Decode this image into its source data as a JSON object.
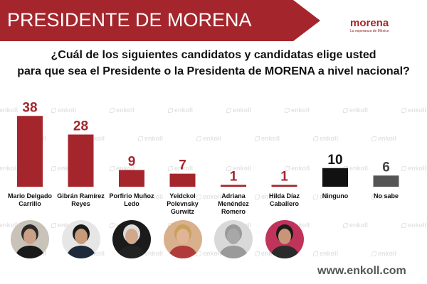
{
  "header": {
    "title": "PRESIDENTE DE MORENA",
    "band_color": "#a4262c"
  },
  "logo": {
    "word": "morena",
    "tagline": "La esperanza de México"
  },
  "question": {
    "line1": "¿Cuál de los siguientes candidatos y candidatas elige usted",
    "line2": "para que sea el Presidente o la Presidenta de MORENA a nivel nacional?"
  },
  "watermark_text": "enkoll",
  "footer": {
    "url": "www.enkoll.com"
  },
  "chart_data": {
    "type": "bar",
    "categories": [
      "Mario Delgado Carrillo",
      "Gibrán Ramírez Reyes",
      "Porfirio Muñoz Ledo",
      "Yeidckol Polevnsky Gurwitz",
      "Adriana Menéndez Romero",
      "Hilda Díaz Caballero",
      "Ninguno",
      "No sabe"
    ],
    "label_lines": [
      [
        "Mario Delgado",
        "Carrillo"
      ],
      [
        "Gibrán Ramírez",
        "Reyes"
      ],
      [
        "Porfirio Muñoz",
        "Ledo"
      ],
      [
        "Yeidckol",
        "Polevnsky",
        "Gurwitz"
      ],
      [
        "Adriana",
        "Menéndez",
        "Romero"
      ],
      [
        "Hilda Díaz",
        "Caballero"
      ],
      [
        "Ninguno"
      ],
      [
        "No sabe"
      ]
    ],
    "values": [
      38,
      28,
      9,
      7,
      1,
      1,
      10,
      6
    ],
    "bar_colors": [
      "#a4262c",
      "#a4262c",
      "#a4262c",
      "#a4262c",
      "#a4262c",
      "#a4262c",
      "#111111",
      "#555555"
    ],
    "label_colors": [
      "#a4262c",
      "#a4262c",
      "#a4262c",
      "#a4262c",
      "#a4262c",
      "#a4262c",
      "#111111",
      "#444444"
    ],
    "title": "",
    "xlabel": "",
    "ylabel": "",
    "ylim": [
      0,
      40
    ],
    "grid": false,
    "legend": "none",
    "avatars": [
      {
        "icon": "man-suit-avatar-icon",
        "bg": "#c9c2b8",
        "suit": "#1a1a1a",
        "skin": "#caa184",
        "hair": "#2a2a2a"
      },
      {
        "icon": "man-glasses-avatar-icon",
        "bg": "#e6e6e6",
        "suit": "#1e2a3a",
        "skin": "#c79a7a",
        "hair": "#1a1a1a"
      },
      {
        "icon": "elder-man-avatar-icon",
        "bg": "#1b1b1b",
        "suit": "#222222",
        "skin": "#d2a88c",
        "hair": "#dddddd"
      },
      {
        "icon": "woman-blonde-avatar-icon",
        "bg": "#d8b08c",
        "suit": "#b13b3b",
        "skin": "#e0b596",
        "hair": "#c9a15a"
      },
      {
        "icon": "woman-silhouette-avatar-icon",
        "bg": "#d9d9d9",
        "suit": "#9a9a9a",
        "skin": "#a8a8a8",
        "hair": "#9a9a9a"
      },
      {
        "icon": "woman-curly-avatar-icon",
        "bg": "#c0335a",
        "suit": "#2b2b2b",
        "skin": "#c89578",
        "hair": "#1c1c1c"
      }
    ]
  }
}
